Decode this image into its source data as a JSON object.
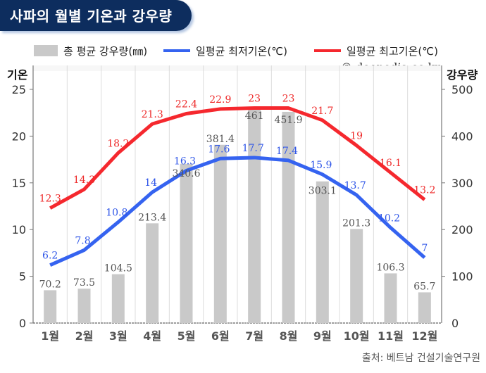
{
  "title": "사파의 월별 기온과 강우량",
  "legend": {
    "rain": "총 평균 강우량(㎜)",
    "min": "일평균 최저기온(℃)",
    "max": "일평균 최고기온(℃)"
  },
  "watermark": "© doopedia.co.kr",
  "source": "출처: 베트남 건설기술연구원",
  "colors": {
    "banner": "#0d2d5e",
    "bar": "#c9c9c9",
    "min_line": "#3563f0",
    "max_line": "#f5282e",
    "min_label": "#2f56e8",
    "max_label": "#ee2a2a",
    "bar_label": "#555555"
  },
  "chart_data": {
    "type": "bar+line",
    "title": "사파의 월별 기온과 강우량",
    "categories": [
      "1월",
      "2월",
      "3월",
      "4월",
      "5월",
      "6월",
      "7월",
      "8월",
      "9월",
      "10월",
      "11월",
      "12월"
    ],
    "y_left": {
      "label": "기온",
      "ticks": [
        "0",
        "5",
        "10",
        "15",
        "20",
        "25"
      ],
      "range": [
        0,
        27.5
      ]
    },
    "y_right": {
      "label": "강우량",
      "ticks": [
        "0",
        "100",
        "200",
        "300",
        "400",
        "500"
      ],
      "range": [
        0,
        550
      ]
    },
    "series": [
      {
        "name": "총 평균 강우량(㎜)",
        "type": "bar",
        "axis": "right",
        "values": [
          70.2,
          73.5,
          104.5,
          213.4,
          340.6,
          381.4,
          461,
          451.9,
          303.1,
          201.3,
          106.3,
          65.7
        ],
        "labels": [
          "70.2",
          "73.5",
          "104.5",
          "213.4",
          "340.6",
          "381.4",
          "461",
          "451.9",
          "303.1",
          "201.3",
          "106.3",
          "65.7"
        ]
      },
      {
        "name": "일평균 최저기온(℃)",
        "type": "line",
        "axis": "left",
        "values": [
          6.2,
          7.8,
          10.8,
          14,
          16.3,
          17.6,
          17.7,
          17.4,
          15.9,
          13.7,
          10.2,
          7
        ],
        "labels": [
          "6.2",
          "7.8",
          "10.8",
          "14",
          "16.3",
          "17.6",
          "17.7",
          "17.4",
          "15.9",
          "13.7",
          "10.2",
          "7"
        ]
      },
      {
        "name": "일평균 최고기온(℃)",
        "type": "line",
        "axis": "left",
        "values": [
          12.3,
          14.3,
          18.2,
          21.3,
          22.4,
          22.9,
          23,
          23,
          21.7,
          19,
          16.1,
          13.2
        ],
        "labels": [
          "12.3",
          "14.3",
          "18.2",
          "21.3",
          "22.4",
          "22.9",
          "23",
          "23",
          "21.7",
          "19",
          "16.1",
          "13.2"
        ]
      }
    ],
    "grid": "vertical",
    "legend_position": "top"
  }
}
